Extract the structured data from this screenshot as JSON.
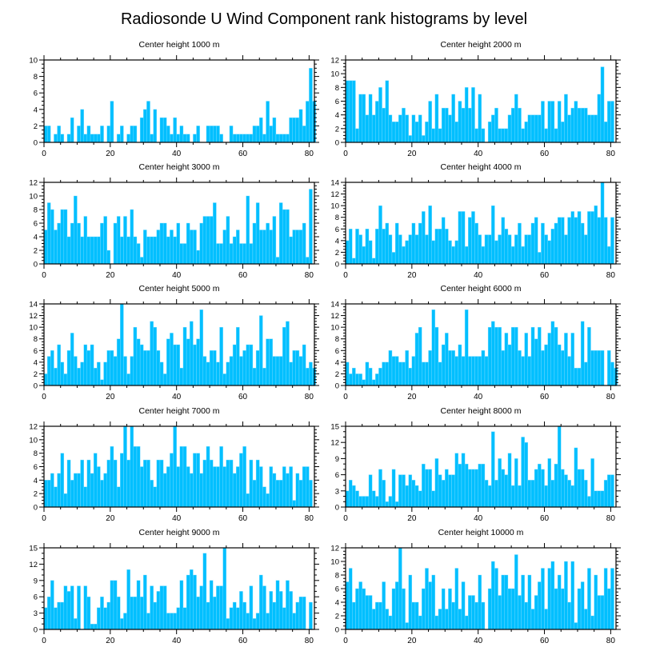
{
  "chart_data": {
    "type": "bar",
    "title": "Radiosonde U Wind Component rank histograms by level",
    "xlim": [
      0,
      81.6
    ],
    "xticks": [
      0,
      20,
      40,
      60,
      80
    ],
    "grid": false,
    "panels": [
      {
        "title": "Center height 1000 m",
        "ylim": [
          0,
          10
        ],
        "yticks": [
          0,
          2,
          4,
          6,
          8,
          10
        ],
        "values": [
          2,
          2,
          0,
          1,
          2,
          1,
          0,
          1,
          3,
          0,
          2,
          4,
          1,
          2,
          1,
          1,
          1,
          2,
          0,
          2,
          5,
          0,
          1,
          2,
          0,
          1,
          2,
          2,
          0,
          3,
          4,
          5,
          1,
          4,
          0,
          3,
          3,
          2,
          1,
          3,
          1,
          2,
          1,
          1,
          0,
          1,
          2,
          0,
          0,
          2,
          2,
          2,
          2,
          1,
          0,
          0,
          2,
          1,
          1,
          1,
          1,
          1,
          1,
          2,
          2,
          3,
          1,
          5,
          2,
          3,
          1,
          1,
          1,
          1,
          3,
          3,
          3,
          4,
          2,
          5,
          9,
          5
        ]
      },
      {
        "title": "Center height 2000 m",
        "ylim": [
          0,
          12
        ],
        "yticks": [
          0,
          2,
          4,
          6,
          8,
          10,
          12
        ],
        "values": [
          9,
          9,
          9,
          2,
          7,
          7,
          4,
          7,
          4,
          6,
          8,
          5,
          9,
          4,
          3,
          3,
          4,
          5,
          4,
          1,
          4,
          3,
          4,
          1,
          3,
          6,
          2,
          7,
          2,
          5,
          5,
          4,
          7,
          3,
          6,
          5,
          8,
          5,
          8,
          2,
          7,
          2,
          0,
          3,
          4,
          5,
          2,
          2,
          2,
          4,
          5,
          7,
          5,
          2,
          3,
          4,
          4,
          4,
          4,
          6,
          2,
          6,
          6,
          2,
          6,
          3,
          7,
          4,
          5,
          6,
          5,
          5,
          5,
          4,
          4,
          4,
          7,
          11,
          3,
          6,
          6
        ]
      },
      {
        "title": "Center height 3000 m",
        "ylim": [
          0,
          12
        ],
        "yticks": [
          0,
          2,
          4,
          6,
          8,
          10,
          12
        ],
        "values": [
          5,
          9,
          8,
          5,
          6,
          8,
          8,
          4,
          6,
          10,
          6,
          4,
          7,
          4,
          4,
          4,
          4,
          6,
          7,
          2,
          0,
          6,
          7,
          4,
          7,
          4,
          8,
          4,
          3,
          1,
          5,
          4,
          4,
          4,
          5,
          6,
          6,
          4,
          5,
          4,
          6,
          3,
          3,
          6,
          5,
          5,
          2,
          6,
          7,
          7,
          7,
          9,
          3,
          3,
          5,
          7,
          3,
          4,
          5,
          3,
          3,
          10,
          3,
          6,
          9,
          5,
          5,
          6,
          5,
          7,
          1,
          9,
          8,
          8,
          4,
          5,
          5,
          5,
          6,
          1,
          11
        ]
      },
      {
        "title": "Center height 4000 m",
        "ylim": [
          0,
          14
        ],
        "yticks": [
          0,
          2,
          4,
          6,
          8,
          10,
          12,
          14
        ],
        "values": [
          4,
          6,
          1,
          6,
          5,
          3,
          6,
          4,
          1,
          6,
          10,
          6,
          7,
          5,
          2,
          7,
          5,
          3,
          4,
          5,
          7,
          5,
          7,
          9,
          5,
          10,
          4,
          6,
          6,
          8,
          6,
          4,
          3,
          4,
          9,
          9,
          3,
          8,
          9,
          7,
          5,
          3,
          5,
          5,
          10,
          4,
          5,
          8,
          6,
          5,
          3,
          5,
          7,
          3,
          5,
          5,
          7,
          8,
          2,
          7,
          5,
          4,
          6,
          7,
          8,
          8,
          5,
          8,
          9,
          8,
          9,
          7,
          5,
          9,
          9,
          10,
          8,
          14,
          8,
          3,
          8
        ]
      },
      {
        "title": "Center height 5000 m",
        "ylim": [
          0,
          14
        ],
        "yticks": [
          0,
          2,
          4,
          6,
          8,
          10,
          12,
          14
        ],
        "values": [
          2,
          5,
          6,
          3,
          7,
          4,
          2,
          6,
          9,
          5,
          3,
          4,
          7,
          6,
          7,
          3,
          4,
          1,
          4,
          6,
          6,
          5,
          8,
          14,
          5,
          2,
          5,
          10,
          8,
          7,
          6,
          6,
          11,
          10,
          6,
          4,
          2,
          8,
          9,
          7,
          7,
          3,
          10,
          8,
          11,
          7,
          8,
          13,
          5,
          4,
          6,
          6,
          4,
          10,
          2,
          4,
          5,
          7,
          10,
          5,
          6,
          7,
          7,
          3,
          6,
          12,
          3,
          8,
          8,
          5,
          5,
          5,
          10,
          11,
          4,
          6,
          6,
          5,
          7,
          3,
          4,
          3
        ]
      },
      {
        "title": "Center height 6000 m",
        "ylim": [
          0,
          14
        ],
        "yticks": [
          0,
          2,
          4,
          6,
          8,
          10,
          12,
          14
        ],
        "values": [
          4,
          2,
          3,
          2,
          2,
          1,
          4,
          3,
          1,
          2,
          3,
          4,
          4,
          6,
          5,
          5,
          4,
          4,
          6,
          3,
          5,
          9,
          10,
          4,
          4,
          6,
          13,
          10,
          4,
          7,
          9,
          6,
          6,
          5,
          7,
          5,
          13,
          5,
          5,
          5,
          5,
          6,
          5,
          10,
          11,
          10,
          10,
          6,
          9,
          7,
          10,
          10,
          6,
          5,
          9,
          5,
          10,
          8,
          10,
          6,
          7,
          9,
          11,
          10,
          7,
          6,
          9,
          5,
          9,
          3,
          3,
          11,
          4,
          10,
          6,
          6,
          6,
          6,
          0,
          6,
          4,
          3
        ]
      },
      {
        "title": "Center height 7000 m",
        "ylim": [
          0,
          12
        ],
        "yticks": [
          0,
          2,
          4,
          6,
          8,
          10,
          12
        ],
        "values": [
          4,
          4,
          5,
          3,
          5,
          8,
          2,
          7,
          4,
          5,
          5,
          7,
          3,
          7,
          5,
          8,
          6,
          4,
          5,
          7,
          9,
          7,
          3,
          8,
          12,
          7,
          12,
          9,
          9,
          6,
          7,
          7,
          4,
          3,
          7,
          7,
          5,
          6,
          8,
          12,
          6,
          9,
          9,
          6,
          5,
          8,
          8,
          5,
          7,
          9,
          7,
          6,
          6,
          9,
          6,
          7,
          7,
          5,
          6,
          8,
          9,
          2,
          7,
          4,
          7,
          6,
          3,
          2,
          6,
          5,
          4,
          4,
          6,
          5,
          6,
          1,
          5,
          4,
          6,
          6,
          4
        ]
      },
      {
        "title": "Center height 8000 m",
        "ylim": [
          0,
          15
        ],
        "yticks": [
          0,
          3,
          6,
          9,
          12,
          15
        ],
        "values": [
          3,
          5,
          4,
          3,
          2,
          2,
          2,
          6,
          3,
          2,
          7,
          5,
          1,
          2,
          7,
          1,
          6,
          6,
          4,
          6,
          5,
          4,
          3,
          8,
          7,
          7,
          3,
          9,
          6,
          5,
          7,
          6,
          6,
          10,
          8,
          10,
          8,
          7,
          7,
          7,
          8,
          8,
          5,
          4,
          14,
          5,
          9,
          7,
          6,
          10,
          4,
          9,
          4,
          13,
          12,
          5,
          5,
          7,
          8,
          7,
          4,
          9,
          5,
          8,
          15,
          7,
          6,
          5,
          4,
          11,
          7,
          7,
          5,
          2,
          9,
          3,
          3,
          3,
          5,
          6,
          6
        ]
      },
      {
        "title": "Center height 9000 m",
        "ylim": [
          0,
          15
        ],
        "yticks": [
          0,
          3,
          6,
          9,
          12,
          15
        ],
        "values": [
          4,
          6,
          9,
          4,
          5,
          5,
          8,
          7,
          8,
          2,
          8,
          0,
          8,
          6,
          1,
          1,
          4,
          6,
          4,
          5,
          9,
          9,
          6,
          2,
          3,
          11,
          6,
          6,
          9,
          6,
          10,
          3,
          8,
          5,
          7,
          8,
          8,
          3,
          3,
          3,
          4,
          9,
          4,
          10,
          11,
          10,
          6,
          8,
          14,
          5,
          9,
          6,
          8,
          8,
          15,
          2,
          4,
          5,
          4,
          7,
          5,
          3,
          8,
          2,
          3,
          10,
          8,
          3,
          7,
          5,
          9,
          7,
          4,
          9,
          7,
          3,
          5,
          6,
          6,
          0,
          5
        ]
      },
      {
        "title": "Center height 10000 m",
        "ylim": [
          0,
          12
        ],
        "yticks": [
          0,
          2,
          4,
          6,
          8,
          10,
          12
        ],
        "values": [
          7,
          9,
          4,
          6,
          7,
          6,
          5,
          5,
          3,
          4,
          4,
          7,
          3,
          2,
          6,
          7,
          12,
          6,
          1,
          8,
          4,
          4,
          2,
          6,
          9,
          7,
          8,
          2,
          3,
          6,
          3,
          6,
          4,
          9,
          3,
          7,
          2,
          5,
          5,
          4,
          8,
          4,
          0,
          6,
          10,
          9,
          5,
          8,
          8,
          6,
          6,
          11,
          5,
          8,
          4,
          8,
          3,
          5,
          7,
          9,
          3,
          9,
          10,
          6,
          8,
          6,
          10,
          4,
          10,
          1,
          6,
          7,
          3,
          9,
          2,
          8,
          5,
          5,
          9,
          6,
          9
        ]
      }
    ]
  },
  "colors": {
    "bar": "#00BFFF"
  }
}
